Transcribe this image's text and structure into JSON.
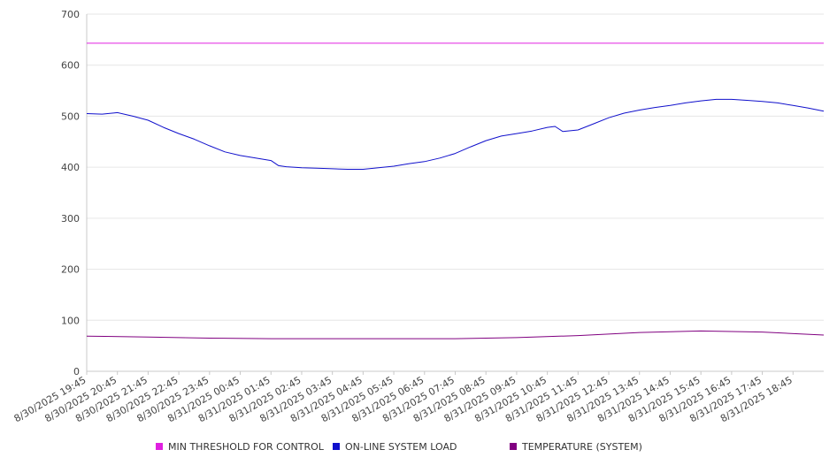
{
  "chart_data": {
    "type": "line",
    "title": "",
    "xlabel": "",
    "ylabel": "",
    "ylim": [
      0,
      700
    ],
    "y_ticks": [
      0,
      100,
      200,
      300,
      400,
      500,
      600,
      700
    ],
    "grid": true,
    "legend_position": "bottom",
    "x_tick_labels": [
      "8/30/2025 19:45",
      "8/30/2025 20:45",
      "8/30/2025 21:45",
      "8/30/2025 22:45",
      "8/30/2025 23:45",
      "8/31/2025 00:45",
      "8/31/2025 01:45",
      "8/31/2025 02:45",
      "8/31/2025 03:45",
      "8/31/2025 04:45",
      "8/31/2025 05:45",
      "8/31/2025 06:45",
      "8/31/2025 07:45",
      "8/31/2025 08:45",
      "8/31/2025 09:45",
      "8/31/2025 10:45",
      "8/31/2025 11:45",
      "8/31/2025 12:45",
      "8/31/2025 13:45",
      "8/31/2025 14:45",
      "8/31/2025 15:45",
      "8/31/2025 16:45",
      "8/31/2025 17:45",
      "8/31/2025 18:45"
    ],
    "x_start": "8/30/2025 19:45",
    "x_end": "8/31/2025 19:45",
    "series": [
      {
        "name": "MIN THRESHOLD FOR CONTROL",
        "color": "#e020e0",
        "x": [
          "8/30/2025 19:45",
          "8/31/2025 19:45"
        ],
        "values": [
          643,
          643
        ]
      },
      {
        "name": "ON-LINE SYSTEM LOAD",
        "color": "#1010cc",
        "x": [
          "8/30/2025 19:45",
          "8/30/2025 20:15",
          "8/30/2025 20:45",
          "8/30/2025 21:15",
          "8/30/2025 21:45",
          "8/30/2025 22:15",
          "8/30/2025 22:45",
          "8/30/2025 23:15",
          "8/30/2025 23:45",
          "8/31/2025 00:15",
          "8/31/2025 00:45",
          "8/31/2025 01:15",
          "8/31/2025 01:45",
          "8/31/2025 02:00",
          "8/31/2025 02:15",
          "8/31/2025 02:45",
          "8/31/2025 03:15",
          "8/31/2025 03:45",
          "8/31/2025 04:15",
          "8/31/2025 04:45",
          "8/31/2025 05:15",
          "8/31/2025 05:45",
          "8/31/2025 06:15",
          "8/31/2025 06:45",
          "8/31/2025 07:15",
          "8/31/2025 07:45",
          "8/31/2025 08:15",
          "8/31/2025 08:45",
          "8/31/2025 09:15",
          "8/31/2025 09:45",
          "8/31/2025 10:15",
          "8/31/2025 10:45",
          "8/31/2025 11:00",
          "8/31/2025 11:15",
          "8/31/2025 11:45",
          "8/31/2025 12:15",
          "8/31/2025 12:45",
          "8/31/2025 13:15",
          "8/31/2025 13:45",
          "8/31/2025 14:15",
          "8/31/2025 14:45",
          "8/31/2025 15:15",
          "8/31/2025 15:45",
          "8/31/2025 16:15",
          "8/31/2025 16:45",
          "8/31/2025 17:15",
          "8/31/2025 17:45",
          "8/31/2025 18:15",
          "8/31/2025 18:45",
          "8/31/2025 19:15",
          "8/31/2025 19:45"
        ],
        "values": [
          505,
          504,
          507,
          500,
          492,
          478,
          466,
          455,
          442,
          430,
          423,
          418,
          413,
          403,
          401,
          399,
          398,
          397,
          396,
          396,
          399,
          402,
          407,
          411,
          418,
          427,
          440,
          452,
          461,
          466,
          471,
          478,
          480,
          470,
          473,
          485,
          497,
          506,
          512,
          517,
          521,
          526,
          530,
          533,
          533,
          531,
          529,
          526,
          521,
          516,
          510
        ]
      },
      {
        "name": "TEMPERATURE (SYSTEM)",
        "color": "#800080",
        "x": [
          "8/30/2025 19:45",
          "8/30/2025 21:45",
          "8/30/2025 23:45",
          "8/31/2025 01:45",
          "8/31/2025 03:45",
          "8/31/2025 05:45",
          "8/31/2025 07:45",
          "8/31/2025 09:45",
          "8/31/2025 11:45",
          "8/31/2025 13:45",
          "8/31/2025 15:45",
          "8/31/2025 17:45",
          "8/31/2025 19:45"
        ],
        "values": [
          69,
          67,
          65,
          64,
          64,
          64,
          64,
          66,
          70,
          76,
          79,
          77,
          71
        ]
      }
    ]
  }
}
